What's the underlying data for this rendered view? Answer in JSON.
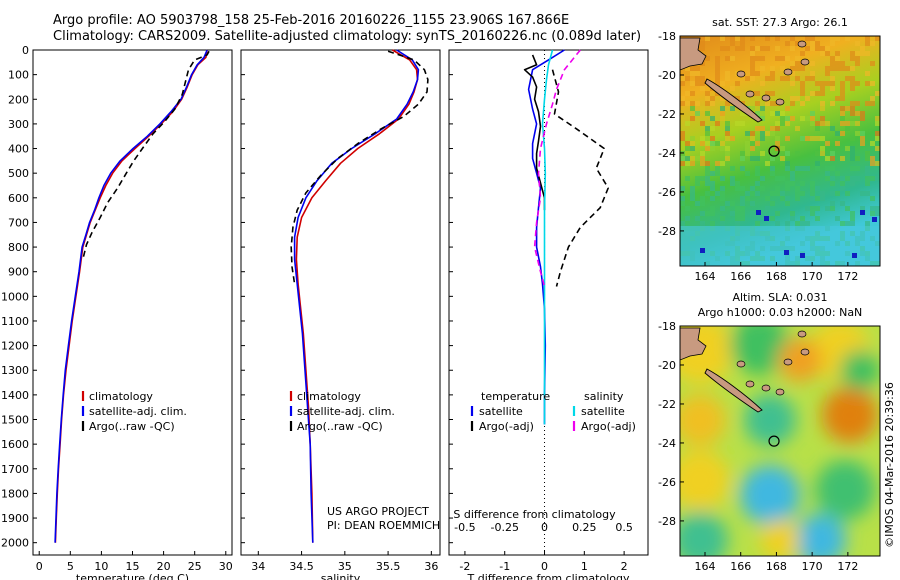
{
  "header": {
    "line1": "Argo profile: AO 5903798_158 25-Feb-2016 20160226_1155 23.906S 167.866E",
    "line2": "Climatology: CARS2009. Satellite-adjusted climatology: synTS_20160226.nc (0.089d later)"
  },
  "colors": {
    "clim": "#d00000",
    "sat": "#0000ee",
    "argo": "#000000",
    "sal_sat": "#00d8e8",
    "sal_argo": "#ee00ee"
  },
  "depth_axis": {
    "ylim": [
      0,
      2050
    ],
    "ticks": [
      0,
      100,
      200,
      300,
      400,
      500,
      600,
      700,
      800,
      900,
      1000,
      1100,
      1200,
      1300,
      1400,
      1500,
      1600,
      1700,
      1800,
      1900,
      2000
    ]
  },
  "chart_data": [
    {
      "type": "line",
      "id": "temperature",
      "xlabel": "temperature (deg C)",
      "xlim": [
        -1,
        31
      ],
      "xticks": [
        0,
        5,
        10,
        15,
        20,
        25,
        30
      ],
      "ylim": [
        0,
        2050
      ],
      "legend": [
        "climatology",
        "satellite-adj. clim.",
        "Argo(..raw -QC)"
      ],
      "series": [
        {
          "name": "climatology",
          "color": "#d00000",
          "dash": false,
          "points": [
            [
              27.0,
              0
            ],
            [
              26.8,
              30
            ],
            [
              25.5,
              60
            ],
            [
              24.6,
              100
            ],
            [
              23.8,
              150
            ],
            [
              22.9,
              200
            ],
            [
              21.5,
              250
            ],
            [
              19.6,
              300
            ],
            [
              17.6,
              350
            ],
            [
              15.4,
              400
            ],
            [
              13.3,
              450
            ],
            [
              11.8,
              500
            ],
            [
              10.7,
              550
            ],
            [
              9.8,
              600
            ],
            [
              9.0,
              650
            ],
            [
              8.2,
              700
            ],
            [
              7.6,
              750
            ],
            [
              7.0,
              800
            ],
            [
              6.5,
              900
            ],
            [
              5.9,
              1000
            ],
            [
              5.3,
              1100
            ],
            [
              4.8,
              1200
            ],
            [
              4.3,
              1300
            ],
            [
              3.9,
              1400
            ],
            [
              3.6,
              1500
            ],
            [
              3.35,
              1600
            ],
            [
              3.1,
              1700
            ],
            [
              2.9,
              1800
            ],
            [
              2.75,
              1900
            ],
            [
              2.6,
              2000
            ]
          ]
        },
        {
          "name": "satellite-adj. clim.",
          "color": "#0000ee",
          "dash": false,
          "points": [
            [
              27.0,
              0
            ],
            [
              26.5,
              30
            ],
            [
              25.4,
              60
            ],
            [
              24.5,
              100
            ],
            [
              23.7,
              150
            ],
            [
              22.8,
              200
            ],
            [
              21.2,
              250
            ],
            [
              19.4,
              300
            ],
            [
              17.4,
              350
            ],
            [
              15.1,
              400
            ],
            [
              13.0,
              450
            ],
            [
              11.5,
              500
            ],
            [
              10.4,
              550
            ],
            [
              9.6,
              600
            ],
            [
              8.9,
              650
            ],
            [
              8.1,
              700
            ],
            [
              7.5,
              750
            ],
            [
              6.9,
              800
            ],
            [
              6.4,
              900
            ],
            [
              5.8,
              1000
            ],
            [
              5.2,
              1100
            ],
            [
              4.7,
              1200
            ],
            [
              4.2,
              1300
            ],
            [
              3.85,
              1400
            ],
            [
              3.55,
              1500
            ],
            [
              3.3,
              1600
            ],
            [
              3.05,
              1700
            ],
            [
              2.85,
              1800
            ],
            [
              2.7,
              1900
            ],
            [
              2.55,
              2000
            ]
          ]
        },
        {
          "name": "Argo(..raw -QC)",
          "color": "#000000",
          "dash": true,
          "points": [
            [
              27.3,
              5
            ],
            [
              27.0,
              20
            ],
            [
              25.0,
              40
            ],
            [
              24.0,
              80
            ],
            [
              23.6,
              120
            ],
            [
              23.0,
              180
            ],
            [
              21.8,
              240
            ],
            [
              20.2,
              290
            ],
            [
              18.3,
              340
            ],
            [
              16.6,
              400
            ],
            [
              15.2,
              450
            ],
            [
              14.0,
              500
            ],
            [
              12.6,
              560
            ],
            [
              11.0,
              620
            ],
            [
              9.8,
              680
            ],
            [
              8.5,
              740
            ],
            [
              7.6,
              790
            ],
            [
              7.0,
              850
            ]
          ]
        }
      ]
    },
    {
      "type": "line",
      "id": "salinity",
      "xlabel": "salinity",
      "xlim": [
        33.8,
        36.1
      ],
      "xticks": [
        34,
        34.5,
        35,
        35.5,
        36
      ],
      "ylim": [
        0,
        2050
      ],
      "legend": [
        "climatology",
        "satellite-adj. clim.",
        "Argo(..raw -QC)"
      ],
      "annotation": [
        "US ARGO PROJECT",
        "PI: DEAN ROEMMICH"
      ],
      "series": [
        {
          "name": "climatology",
          "color": "#d00000",
          "dash": false,
          "points": [
            [
              35.55,
              0
            ],
            [
              35.75,
              40
            ],
            [
              35.83,
              80
            ],
            [
              35.84,
              120
            ],
            [
              35.8,
              170
            ],
            [
              35.74,
              220
            ],
            [
              35.62,
              280
            ],
            [
              35.4,
              340
            ],
            [
              35.15,
              400
            ],
            [
              34.95,
              460
            ],
            [
              34.78,
              530
            ],
            [
              34.62,
              600
            ],
            [
              34.5,
              680
            ],
            [
              34.45,
              760
            ],
            [
              34.44,
              850
            ],
            [
              34.46,
              950
            ],
            [
              34.49,
              1050
            ],
            [
              34.52,
              1150
            ],
            [
              34.55,
              1300
            ],
            [
              34.58,
              1450
            ],
            [
              34.6,
              1600
            ],
            [
              34.62,
              1800
            ],
            [
              34.63,
              2000
            ]
          ]
        },
        {
          "name": "satellite-adj. clim.",
          "color": "#0000ee",
          "dash": false,
          "points": [
            [
              35.6,
              0
            ],
            [
              35.78,
              40
            ],
            [
              35.85,
              80
            ],
            [
              35.84,
              120
            ],
            [
              35.79,
              170
            ],
            [
              35.72,
              220
            ],
            [
              35.6,
              280
            ],
            [
              35.35,
              340
            ],
            [
              35.08,
              400
            ],
            [
              34.85,
              460
            ],
            [
              34.68,
              530
            ],
            [
              34.55,
              600
            ],
            [
              34.46,
              680
            ],
            [
              34.42,
              760
            ],
            [
              34.42,
              850
            ],
            [
              34.45,
              950
            ],
            [
              34.48,
              1050
            ],
            [
              34.51,
              1150
            ],
            [
              34.54,
              1300
            ],
            [
              34.57,
              1450
            ],
            [
              34.6,
              1600
            ],
            [
              34.61,
              1800
            ],
            [
              34.63,
              2000
            ]
          ]
        },
        {
          "name": "Argo(..raw -QC)",
          "color": "#000000",
          "dash": true,
          "points": [
            [
              35.5,
              5
            ],
            [
              35.8,
              40
            ],
            [
              35.92,
              80
            ],
            [
              35.96,
              120
            ],
            [
              35.95,
              170
            ],
            [
              35.85,
              220
            ],
            [
              35.68,
              270
            ],
            [
              35.42,
              320
            ],
            [
              35.15,
              380
            ],
            [
              34.92,
              440
            ],
            [
              34.72,
              510
            ],
            [
              34.55,
              580
            ],
            [
              34.45,
              650
            ],
            [
              34.4,
              720
            ],
            [
              34.38,
              800
            ],
            [
              34.39,
              880
            ],
            [
              34.42,
              950
            ]
          ]
        }
      ]
    },
    {
      "type": "line",
      "id": "difference",
      "xlabel": "T difference from climatology",
      "xlim": [
        -2.4,
        2.6
      ],
      "xticks": [
        -2,
        -1,
        0,
        1,
        2
      ],
      "top_label": "S difference from climatology",
      "top_ticks": [
        {
          "label": "-0.5",
          "t": -2
        },
        {
          "label": "-0.25",
          "t": -1
        },
        {
          "label": "0",
          "t": 0
        },
        {
          "label": "0.25",
          "t": 1
        },
        {
          "label": "0.5",
          "t": 2
        }
      ],
      "ylim": [
        0,
        2050
      ],
      "legend": {
        "temperature": {
          "title": "temperature",
          "items": [
            "satellite",
            "Argo(-adj)"
          ]
        },
        "salinity": {
          "title": "salinity",
          "items": [
            "satellite",
            "Argo(-adj)"
          ]
        }
      },
      "series": [
        {
          "name": "temperature satellite",
          "color": "#0000ee",
          "dash": false,
          "points": [
            [
              0.5,
              0
            ],
            [
              0.1,
              40
            ],
            [
              -0.3,
              80
            ],
            [
              -0.4,
              160
            ],
            [
              -0.3,
              240
            ],
            [
              -0.2,
              300
            ],
            [
              -0.3,
              380
            ],
            [
              -0.3,
              440
            ],
            [
              -0.2,
              500
            ],
            [
              -0.1,
              560
            ],
            [
              -0.15,
              640
            ],
            [
              -0.2,
              720
            ],
            [
              -0.2,
              800
            ],
            [
              -0.1,
              880
            ],
            [
              -0.05,
              950
            ],
            [
              0.0,
              1050
            ],
            [
              0.02,
              1200
            ],
            [
              0.0,
              1400
            ],
            [
              0.0,
              1520
            ]
          ]
        },
        {
          "name": "temperature Argo(-adj)",
          "color": "#000000",
          "dash": false,
          "points": [
            [
              -0.3,
              20
            ],
            [
              -0.2,
              60
            ],
            [
              -0.5,
              80
            ],
            [
              -0.3,
              110
            ],
            [
              -0.2,
              150
            ],
            [
              -0.25,
              200
            ],
            [
              -0.15,
              250
            ],
            [
              -0.1,
              310
            ],
            [
              -0.15,
              370
            ],
            [
              -0.2,
              420
            ],
            [
              -0.2,
              480
            ],
            [
              -0.1,
              540
            ],
            [
              0.0,
              600
            ],
            [
              0.0,
              650
            ]
          ]
        },
        {
          "name": "salinity satellite",
          "color": "#00d8e8",
          "dash": false,
          "points": [
            [
              0.2,
              0
            ],
            [
              0.1,
              60
            ],
            [
              0.05,
              120
            ],
            [
              0.0,
              200
            ],
            [
              -0.05,
              300
            ],
            [
              0.0,
              400
            ],
            [
              0.02,
              500
            ],
            [
              0.0,
              650
            ],
            [
              0.0,
              900
            ],
            [
              0.0,
              1200
            ],
            [
              0.0,
              1520
            ]
          ]
        },
        {
          "name": "salinity Argo(-adj)",
          "color": "#ee00ee",
          "dash": true,
          "points": [
            [
              0.9,
              0
            ],
            [
              0.5,
              80
            ],
            [
              0.3,
              160
            ],
            [
              0.2,
              220
            ],
            [
              0.05,
              300
            ],
            [
              -0.1,
              400
            ],
            [
              -0.15,
              500
            ],
            [
              -0.1,
              600
            ],
            [
              -0.2,
              700
            ],
            [
              -0.25,
              800
            ],
            [
              -0.1,
              900
            ],
            [
              0.0,
              960
            ]
          ]
        },
        {
          "name": "Argo black dashed",
          "color": "#000000",
          "dash": true,
          "points": [
            [
              0.2,
              80
            ],
            [
              0.35,
              170
            ],
            [
              0.25,
              260
            ],
            [
              0.8,
              320
            ],
            [
              1.5,
              400
            ],
            [
              1.3,
              480
            ],
            [
              1.6,
              560
            ],
            [
              1.4,
              640
            ],
            [
              0.9,
              720
            ],
            [
              0.6,
              800
            ],
            [
              0.4,
              900
            ],
            [
              0.3,
              960
            ]
          ]
        }
      ]
    },
    {
      "type": "heatmap",
      "id": "sst_map",
      "title": "sat. SST: 27.3 Argo: 26.1",
      "xticks": [
        164,
        166,
        168,
        170,
        172
      ],
      "yticks": [
        -18,
        -20,
        -22,
        -24,
        -26,
        -28
      ],
      "xlim": [
        162.6,
        173.8
      ],
      "ylim": [
        -29.8,
        -18
      ],
      "marker": [
        167.866,
        -23.906
      ]
    },
    {
      "type": "heatmap",
      "id": "sla_map",
      "title": [
        "Altim. SLA: 0.031",
        "Argo h1000: 0.03 h2000: NaN"
      ],
      "xticks": [
        164,
        166,
        168,
        170,
        172
      ],
      "yticks": [
        -18,
        -20,
        -22,
        -24,
        -26,
        -28
      ],
      "xlim": [
        162.6,
        173.8
      ],
      "ylim": [
        -29.8,
        -18
      ],
      "marker": [
        167.866,
        -23.906
      ]
    }
  ],
  "credit": "©IMOS 04-Mar-2016 20:39:36"
}
